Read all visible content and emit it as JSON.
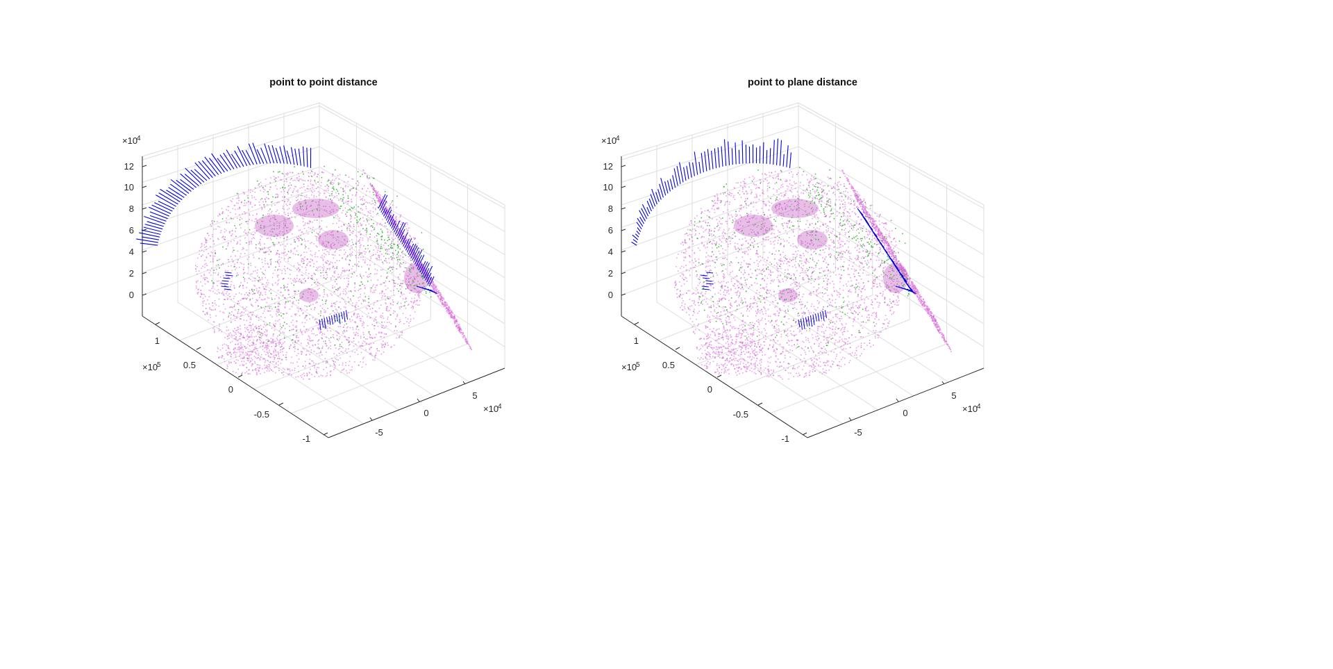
{
  "figure": {
    "background": "#ffffff",
    "colors": {
      "surface_points": "#e27de2",
      "surface_points_dark": "#b646b6",
      "correspondence_lines": "#0000dd",
      "sample_points": "#33bb33",
      "axis": "#262626",
      "grid": "#dedede"
    }
  },
  "chart_data": [
    {
      "type": "scatter",
      "title": "point to point distance",
      "xlabel": "",
      "ylabel": "",
      "zlabel": "",
      "x_ticks": [
        "-5",
        "0",
        "5"
      ],
      "x_exponent": {
        "base": "×10",
        "power": "4"
      },
      "y_ticks": [
        "-1",
        "-0.5",
        "0",
        "0.5",
        "1"
      ],
      "y_exponent": {
        "base": "×10",
        "power": "5"
      },
      "z_ticks": [
        "0",
        "2",
        "4",
        "6",
        "8",
        "10",
        "12"
      ],
      "z_exponent": {
        "base": "×10",
        "power": "4"
      },
      "grid": true,
      "series": [
        {
          "values": "dense face point cloud (magenta dots)"
        },
        {
          "values": "sampled points (green dots)"
        },
        {
          "values": "distance vectors (blue segments)"
        }
      ]
    },
    {
      "type": "scatter",
      "title": "point to plane distance",
      "xlabel": "",
      "ylabel": "",
      "zlabel": "",
      "x_ticks": [
        "-5",
        "0",
        "5"
      ],
      "x_exponent": {
        "base": "×10",
        "power": "4"
      },
      "y_ticks": [
        "-1",
        "-0.5",
        "0",
        "0.5",
        "1"
      ],
      "y_exponent": {
        "base": "×10",
        "power": "5"
      },
      "z_ticks": [
        "0",
        "2",
        "4",
        "6",
        "8",
        "10",
        "12"
      ],
      "z_exponent": {
        "base": "×10",
        "power": "4"
      },
      "grid": true,
      "series": [
        {
          "values": "dense face point cloud (magenta dots)"
        },
        {
          "values": "sampled points (green dots)"
        },
        {
          "values": "distance vectors (blue segments)"
        }
      ]
    }
  ]
}
